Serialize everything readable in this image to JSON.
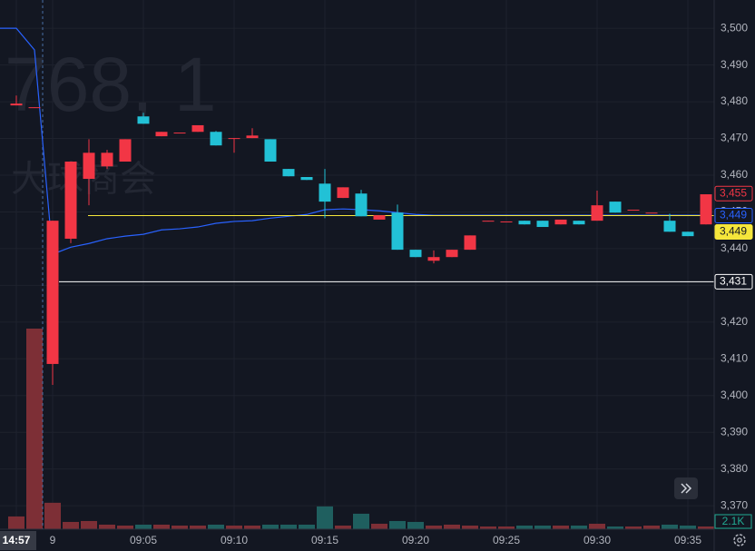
{
  "chart_data": {
    "type": "candlestick",
    "watermark": [
      "768, 1",
      "大球商会"
    ],
    "categories": [
      "14:57",
      null,
      "9",
      null,
      null,
      null,
      null,
      "09:05",
      null,
      null,
      null,
      null,
      "09:10",
      null,
      null,
      null,
      null,
      "09:15",
      null,
      null,
      null,
      null,
      "09:20",
      null,
      null,
      null,
      null,
      "09:25",
      null,
      null,
      null,
      null,
      "09:30",
      null,
      null,
      null,
      null,
      "09:35",
      null
    ],
    "open": [
      3479.0,
      3478.4,
      3408.6,
      3442.7,
      3459.0,
      3462.4,
      3463.7,
      3476.0,
      3470.6,
      3471.6,
      3471.8,
      3471.8,
      3470.1,
      3470.1,
      3469.8,
      3461.7,
      3459.5,
      3457.7,
      3453.8,
      3455.0,
      3447.9,
      3449.8,
      3439.7,
      3436.7,
      3437.7,
      3439.7,
      3447.4,
      3447.4,
      3447.6,
      3447.6,
      3446.6,
      3447.6,
      3447.6,
      3452.8,
      3450.6,
      3449.8,
      3447.6,
      3444.6,
      3446.6
    ],
    "high": [
      3481.7,
      3478.5,
      3447.6,
      3463.7,
      3469.8,
      3466.9,
      3469.8,
      3477.0,
      3471.8,
      3471.6,
      3473.6,
      3472.0,
      3470.1,
      3472.8,
      3469.8,
      3461.7,
      3459.5,
      3461.7,
      3456.7,
      3456.0,
      3449.1,
      3452.0,
      3439.7,
      3439.5,
      3439.7,
      3443.6,
      3447.6,
      3447.4,
      3447.6,
      3447.6,
      3447.9,
      3447.6,
      3455.8,
      3452.8,
      3450.6,
      3449.8,
      3449.5,
      3444.6,
      3454.8
    ],
    "low": [
      3479.0,
      3478.4,
      3402.9,
      3441.5,
      3451.8,
      3461.7,
      3463.7,
      3474.0,
      3470.6,
      3471.6,
      3471.8,
      3468.1,
      3466.1,
      3470.1,
      3463.7,
      3459.7,
      3458.7,
      3448.3,
      3453.8,
      3448.8,
      3447.9,
      3439.7,
      3437.7,
      3436.0,
      3437.7,
      3439.7,
      3447.4,
      3447.4,
      3446.6,
      3445.9,
      3446.6,
      3446.6,
      3447.6,
      3449.8,
      3450.6,
      3449.8,
      3444.6,
      3443.4,
      3446.6
    ],
    "close": [
      3479.5,
      3478.5,
      3447.6,
      3463.7,
      3466.1,
      3466.1,
      3469.8,
      3474.0,
      3471.8,
      3471.6,
      3473.6,
      3468.1,
      3470.1,
      3470.8,
      3463.7,
      3459.7,
      3458.7,
      3452.8,
      3456.7,
      3448.8,
      3449.1,
      3439.7,
      3437.7,
      3437.7,
      3439.7,
      3443.6,
      3447.6,
      3447.4,
      3446.6,
      3445.9,
      3447.9,
      3446.6,
      3451.8,
      3449.8,
      3450.6,
      3449.8,
      3444.6,
      3443.4,
      3454.8
    ],
    "up_color": "#f23645",
    "down_color": "#22c1d6",
    "line": {
      "color": "#2962ff",
      "values": [
        3500.0,
        3494.1,
        3438.5,
        3440.4,
        3441.4,
        3442.7,
        3443.4,
        3443.9,
        3445.1,
        3445.4,
        3445.9,
        3446.9,
        3447.4,
        3447.6,
        3448.3,
        3448.8,
        3449.3,
        3450.6,
        3450.8,
        3450.6,
        3450.3,
        3449.8,
        3449.3,
        3449.1,
        3449.1,
        3449.1,
        3449.1,
        3449.1,
        3449.1,
        3449.1,
        3449.1,
        3449.1,
        3449.1,
        3449.1,
        3449.1,
        3449.1,
        3449.1,
        3449.1,
        3449.1
      ]
    },
    "volume": {
      "values": [
        9800,
        154000,
        20300,
        5600,
        6300,
        3500,
        2800,
        3500,
        3500,
        2800,
        2800,
        3500,
        2800,
        2800,
        3500,
        3500,
        3500,
        17500,
        2800,
        11900,
        4200,
        6300,
        5600,
        2800,
        3500,
        2800,
        2100,
        2100,
        2800,
        2800,
        2800,
        2800,
        4200,
        2100,
        2100,
        2800,
        3500,
        2800,
        2100
      ],
      "value_labels": [
        null,
        null,
        null,
        null,
        null,
        null,
        null,
        null,
        null,
        null,
        null,
        null,
        null,
        null,
        null,
        null,
        null,
        null,
        null,
        null,
        null,
        null,
        null,
        null,
        null,
        null,
        null,
        null,
        null,
        null,
        null,
        null,
        null,
        null,
        null,
        null,
        null,
        null,
        "2.1K"
      ],
      "up_color": "#7d2f36",
      "down_color": "#1f5f5f",
      "ylim": [
        0,
        154000
      ]
    },
    "ylim": [
      3363.6,
      3507.7
    ],
    "yticks": [
      {
        "value": 3370,
        "label": "3,370"
      },
      {
        "value": 3380,
        "label": "3,380"
      },
      {
        "value": 3390,
        "label": "3,390"
      },
      {
        "value": 3400,
        "label": "3,400"
      },
      {
        "value": 3410,
        "label": "3,410"
      },
      {
        "value": 3420,
        "label": "3,420"
      },
      {
        "value": 3430,
        "label": "3,430"
      },
      {
        "value": 3440,
        "label": "3,440"
      },
      {
        "value": 3450,
        "label": "3,450"
      },
      {
        "value": 3460,
        "label": "3,460"
      },
      {
        "value": 3470,
        "label": "3,470"
      },
      {
        "value": 3480,
        "label": "3,480"
      },
      {
        "value": 3490,
        "label": "3,490"
      },
      {
        "value": 3500,
        "label": "3,500"
      }
    ],
    "price_lines": [
      {
        "value": 3455,
        "label": "3,455",
        "color": "#f23645",
        "style": "outline",
        "line": false
      },
      {
        "value": 3449,
        "label": "3,449",
        "color": "#2962ff",
        "style": "outline",
        "line": false
      },
      {
        "value": 3449,
        "label": "3,449",
        "color": "#f5e63b",
        "style": "filled",
        "line": true
      },
      {
        "value": 3431,
        "label": "3,431",
        "color": "#ffffff",
        "style": "outline",
        "line": true
      }
    ],
    "grid": true
  }
}
